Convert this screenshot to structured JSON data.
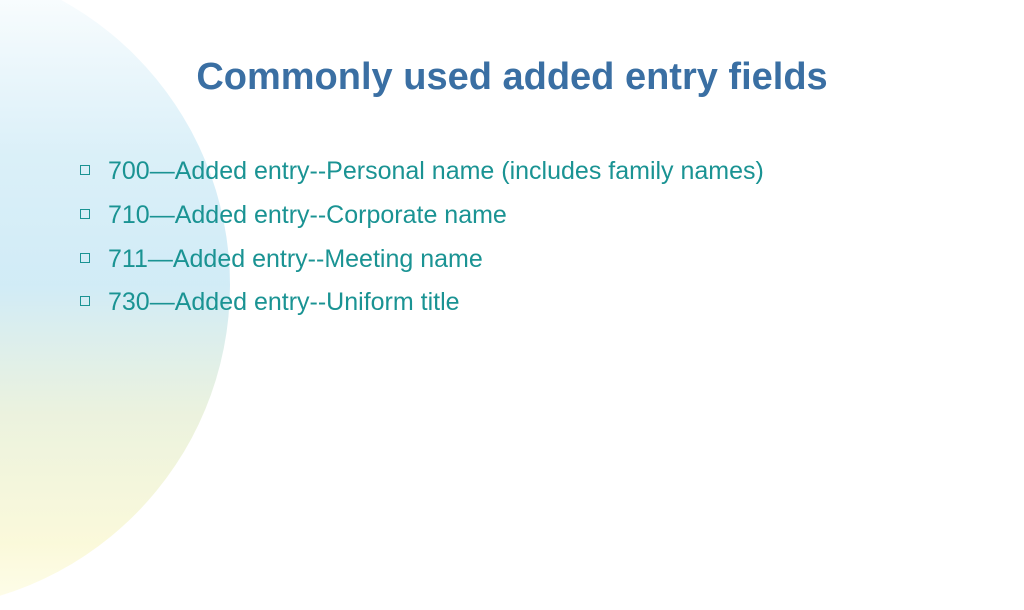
{
  "slide": {
    "title": "Commonly used added entry fields",
    "title_color": "#3a6fa3",
    "body_color": "#1a9393",
    "background_color": "#ffffff",
    "decorative_gradient": {
      "start": "#d4edf7",
      "end": "#faf8d4"
    },
    "title_fontsize": 38,
    "body_fontsize": 25,
    "bullets": [
      {
        "text": "700—Added entry--Personal name (includes family names)"
      },
      {
        "text": "710—Added entry--Corporate name"
      },
      {
        "text": "711—Added entry--Meeting name"
      },
      {
        "text": "730—Added entry--Uniform title"
      }
    ]
  }
}
